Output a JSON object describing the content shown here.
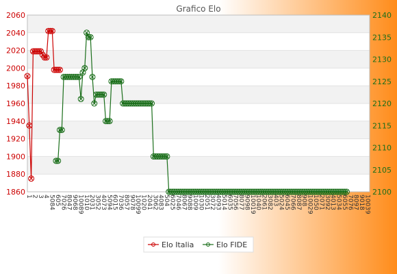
{
  "chart_data": {
    "type": "line",
    "title": "Grafico Elo",
    "background_gradient": [
      "#ffffff",
      "#ff8c1a"
    ],
    "grid": true,
    "legend_position": "bottom-center",
    "y_left": {
      "range": [
        1860,
        2060
      ],
      "ticks": [
        1860,
        1880,
        1900,
        1920,
        1940,
        1960,
        1980,
        2000,
        2020,
        2040,
        2060
      ],
      "color": "#cc0000"
    },
    "y_right": {
      "range": [
        2100,
        2140
      ],
      "ticks": [
        2100,
        2105,
        2110,
        2115,
        2120,
        2125,
        2130,
        2135,
        2140
      ],
      "color": "#1a6e1a"
    },
    "x_tick_labels": [
      "1",
      "2",
      "3",
      "4",
      "5",
      "6",
      "7",
      "8",
      "9",
      "10"
    ],
    "series": [
      {
        "name": "Elo Italia",
        "axis": "left",
        "color": "#cc0000",
        "values": [
          1991,
          1935,
          1875,
          2019,
          2019,
          2019,
          2019,
          2019,
          2015,
          2012,
          2012,
          2042,
          2042,
          2042,
          1998,
          1998,
          1998,
          1998
        ]
      },
      {
        "name": "Elo FIDE",
        "axis": "right",
        "color": "#1a6e1a",
        "start_index": 15,
        "values": [
          2107,
          2107,
          2114,
          2114,
          2126,
          2126,
          2126,
          2126,
          2126,
          2126,
          2126,
          2126,
          2126,
          2121,
          2127,
          2128,
          2136,
          2135,
          2135,
          2126,
          2120,
          2122,
          2122,
          2122,
          2122,
          2122,
          2116,
          2116,
          2116,
          2125,
          2125,
          2125,
          2125,
          2125,
          2125,
          2120,
          2120,
          2120,
          2120,
          2120,
          2120,
          2120,
          2120,
          2120,
          2120,
          2120,
          2120,
          2120,
          2120,
          2120,
          2120,
          2108,
          2108,
          2108,
          2108,
          2108,
          2108,
          2108,
          2108,
          2100,
          2100,
          2100,
          2100,
          2100,
          2100,
          2100,
          2100,
          2100,
          2100,
          2100,
          2100,
          2100,
          2100,
          2100,
          2100,
          2100,
          2100,
          2100,
          2100,
          2100,
          2100,
          2100,
          2100,
          2100,
          2100,
          2100,
          2100,
          2100,
          2100,
          2100,
          2100,
          2100,
          2100,
          2100,
          2100,
          2100,
          2100,
          2100,
          2100,
          2100,
          2100,
          2100,
          2100,
          2100,
          2100,
          2100,
          2100,
          2100,
          2100,
          2100,
          2100,
          2100,
          2100,
          2100,
          2100,
          2100,
          2100,
          2100,
          2100,
          2100,
          2100,
          2100,
          2100,
          2100,
          2100,
          2100,
          2100,
          2100,
          2100,
          2100,
          2100,
          2100,
          2100,
          2100,
          2100,
          2100,
          2100,
          2100,
          2100,
          2100,
          2100,
          2100,
          2100,
          2100,
          2100,
          2100,
          2100,
          2100,
          2100,
          2100,
          2100,
          2100,
          2100
        ]
      }
    ]
  }
}
